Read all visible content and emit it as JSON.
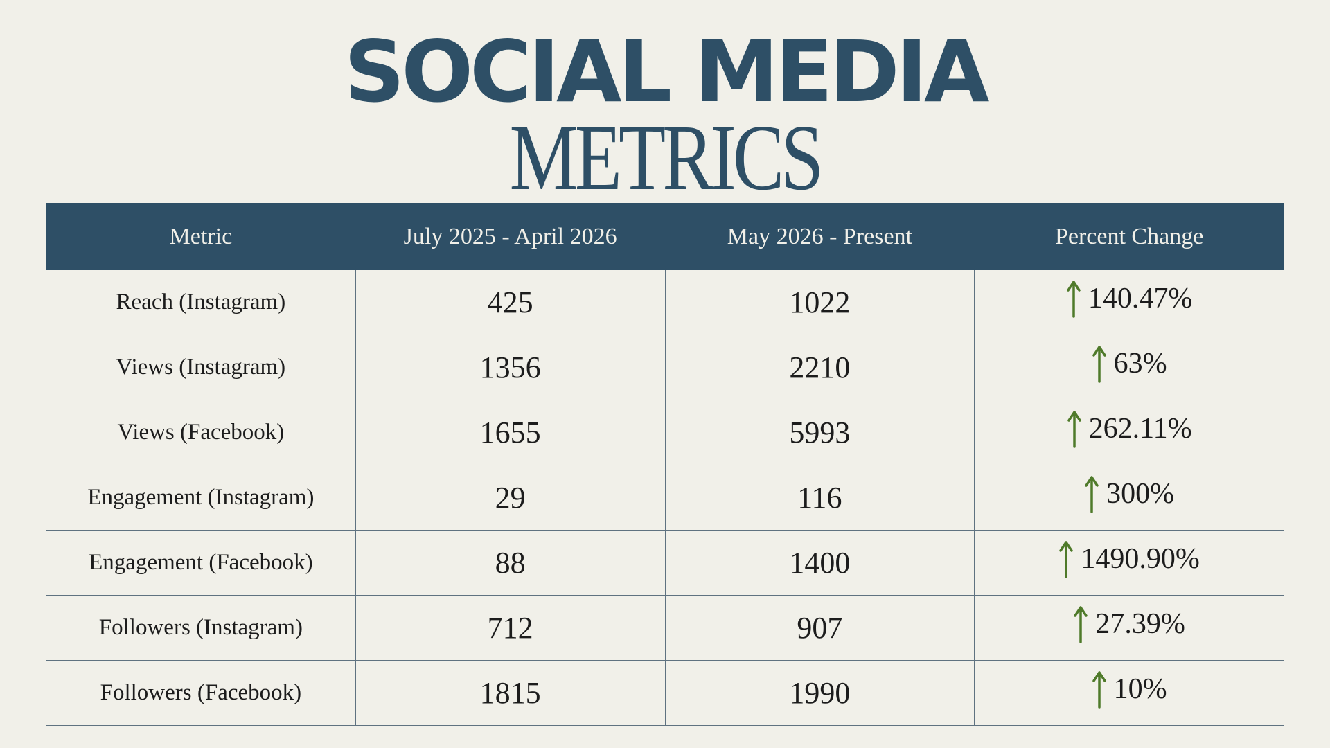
{
  "title": {
    "line1": "SOCIAL MEDIA",
    "line2": "METRICS"
  },
  "colors": {
    "navy": "#2e4f66",
    "background": "#f1f0e9",
    "green": "#4f7a2a"
  },
  "table": {
    "headers": [
      "Metric",
      "July 2025 - April 2026",
      "May 2026 - Present",
      "Percent Change"
    ],
    "rows": [
      {
        "metric": "Reach (Instagram)",
        "before": "425",
        "after": "1022",
        "change": "140.47%",
        "trend": "up-arrow-icon"
      },
      {
        "metric": "Views (Instagram)",
        "before": "1356",
        "after": "2210",
        "change": "63%",
        "trend": "up-arrow-icon"
      },
      {
        "metric": "Views (Facebook)",
        "before": "1655",
        "after": "5993",
        "change": "262.11%",
        "trend": "up-arrow-icon"
      },
      {
        "metric": "Engagement (Instagram)",
        "before": "29",
        "after": "116",
        "change": "300%",
        "trend": "up-arrow-icon"
      },
      {
        "metric": "Engagement (Facebook)",
        "before": "88",
        "after": "1400",
        "change": "1490.90%",
        "trend": "up-arrow-icon"
      },
      {
        "metric": "Followers (Instagram)",
        "before": "712",
        "after": "907",
        "change": "27.39%",
        "trend": "up-arrow-icon"
      },
      {
        "metric": "Followers (Facebook)",
        "before": "1815",
        "after": "1990",
        "change": "10%",
        "trend": "up-arrow-icon"
      }
    ]
  }
}
